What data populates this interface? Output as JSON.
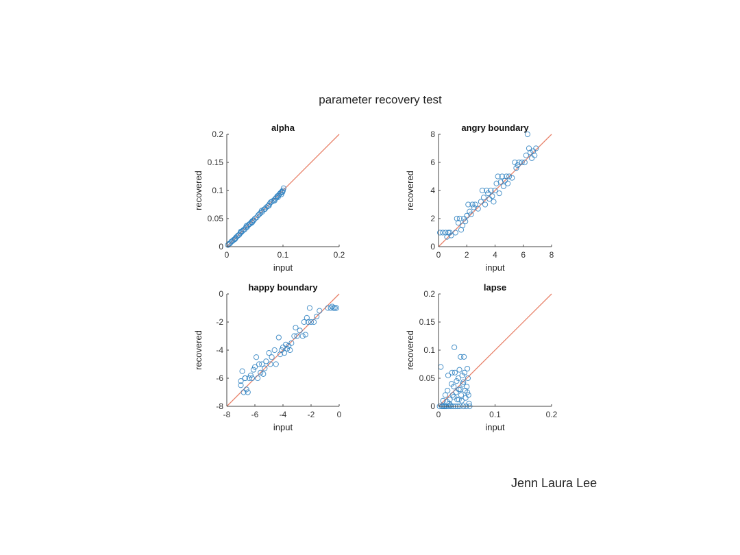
{
  "slide": {
    "title": "parameter recovery test",
    "author": "Jenn Laura Lee"
  },
  "style": {
    "marker_color": "#2a7fbf",
    "identity_line_color": "#e8826a",
    "axis_color": "#444444"
  },
  "chart_data": [
    {
      "type": "scatter",
      "title": "alpha",
      "xlabel": "input",
      "ylabel": "recovered",
      "xlim": [
        0,
        0.2
      ],
      "ylim": [
        0,
        0.2
      ],
      "xticks": [
        0,
        0.1,
        0.2
      ],
      "xtick_labels": [
        "0",
        "0.1",
        "0.2"
      ],
      "yticks": [
        0,
        0.05,
        0.1,
        0.15,
        0.2
      ],
      "ytick_labels": [
        "0",
        "0.05",
        "0.1",
        "0.15",
        "0.2"
      ],
      "identity_line": true,
      "points": [
        [
          0.002,
          0.003
        ],
        [
          0.004,
          0.005
        ],
        [
          0.006,
          0.006
        ],
        [
          0.008,
          0.009
        ],
        [
          0.01,
          0.01
        ],
        [
          0.012,
          0.012
        ],
        [
          0.014,
          0.013
        ],
        [
          0.016,
          0.016
        ],
        [
          0.018,
          0.018
        ],
        [
          0.02,
          0.02
        ],
        [
          0.022,
          0.021
        ],
        [
          0.024,
          0.024
        ],
        [
          0.026,
          0.026
        ],
        [
          0.028,
          0.028
        ],
        [
          0.03,
          0.03
        ],
        [
          0.032,
          0.031
        ],
        [
          0.034,
          0.034
        ],
        [
          0.036,
          0.035
        ],
        [
          0.038,
          0.038
        ],
        [
          0.04,
          0.04
        ],
        [
          0.042,
          0.041
        ],
        [
          0.044,
          0.044
        ],
        [
          0.046,
          0.046
        ],
        [
          0.048,
          0.047
        ],
        [
          0.05,
          0.05
        ],
        [
          0.053,
          0.052
        ],
        [
          0.056,
          0.056
        ],
        [
          0.058,
          0.058
        ],
        [
          0.06,
          0.06
        ],
        [
          0.063,
          0.062
        ],
        [
          0.066,
          0.066
        ],
        [
          0.068,
          0.067
        ],
        [
          0.07,
          0.07
        ],
        [
          0.073,
          0.072
        ],
        [
          0.076,
          0.076
        ],
        [
          0.078,
          0.079
        ],
        [
          0.08,
          0.08
        ],
        [
          0.083,
          0.082
        ],
        [
          0.086,
          0.085
        ],
        [
          0.088,
          0.087
        ],
        [
          0.09,
          0.09
        ],
        [
          0.092,
          0.091
        ],
        [
          0.094,
          0.094
        ],
        [
          0.096,
          0.096
        ],
        [
          0.098,
          0.098
        ],
        [
          0.1,
          0.1
        ],
        [
          0.101,
          0.104
        ],
        [
          0.097,
          0.093
        ],
        [
          0.085,
          0.082
        ],
        [
          0.062,
          0.064
        ],
        [
          0.045,
          0.043
        ],
        [
          0.025,
          0.027
        ],
        [
          0.015,
          0.014
        ],
        [
          0.035,
          0.037
        ],
        [
          0.075,
          0.073
        ],
        [
          0.091,
          0.088
        ],
        [
          0.099,
          0.097
        ]
      ]
    },
    {
      "type": "scatter",
      "title": "angry boundary",
      "xlabel": "input",
      "ylabel": "recovered",
      "xlim": [
        0,
        8
      ],
      "ylim": [
        0,
        8
      ],
      "xticks": [
        0,
        2,
        4,
        6,
        8
      ],
      "xtick_labels": [
        "0",
        "2",
        "4",
        "6",
        "8"
      ],
      "yticks": [
        0,
        2,
        4,
        6,
        8
      ],
      "ytick_labels": [
        "0",
        "2",
        "4",
        "6",
        "8"
      ],
      "identity_line": true,
      "points": [
        [
          0.1,
          1
        ],
        [
          0.3,
          1
        ],
        [
          0.5,
          1
        ],
        [
          0.6,
          0.7
        ],
        [
          0.7,
          1
        ],
        [
          0.8,
          1
        ],
        [
          0.9,
          0.8
        ],
        [
          1.2,
          1
        ],
        [
          1.3,
          2
        ],
        [
          1.4,
          1.7
        ],
        [
          1.5,
          2
        ],
        [
          1.6,
          1.2
        ],
        [
          1.7,
          1.5
        ],
        [
          1.8,
          2
        ],
        [
          1.9,
          1.8
        ],
        [
          2.0,
          2.2
        ],
        [
          2.1,
          3
        ],
        [
          2.2,
          2.5
        ],
        [
          2.3,
          2.3
        ],
        [
          2.4,
          3
        ],
        [
          2.5,
          2.8
        ],
        [
          2.6,
          3
        ],
        [
          2.8,
          2.7
        ],
        [
          3.0,
          3.2
        ],
        [
          3.1,
          4
        ],
        [
          3.2,
          3.5
        ],
        [
          3.3,
          3
        ],
        [
          3.4,
          4
        ],
        [
          3.5,
          3.8
        ],
        [
          3.6,
          3.4
        ],
        [
          3.7,
          4
        ],
        [
          3.8,
          3.6
        ],
        [
          3.9,
          3.2
        ],
        [
          4.0,
          4
        ],
        [
          4.1,
          4.5
        ],
        [
          4.2,
          5
        ],
        [
          4.3,
          3.8
        ],
        [
          4.4,
          4.6
        ],
        [
          4.5,
          5
        ],
        [
          4.6,
          4.3
        ],
        [
          4.7,
          4.7
        ],
        [
          4.8,
          5
        ],
        [
          4.9,
          4.5
        ],
        [
          5.0,
          5
        ],
        [
          5.2,
          4.9
        ],
        [
          5.4,
          6
        ],
        [
          5.5,
          5.6
        ],
        [
          5.6,
          5.8
        ],
        [
          5.7,
          6
        ],
        [
          5.9,
          6
        ],
        [
          6.1,
          6
        ],
        [
          6.2,
          6.5
        ],
        [
          6.3,
          8
        ],
        [
          6.4,
          7
        ],
        [
          6.5,
          6.7
        ],
        [
          6.6,
          6.3
        ],
        [
          6.7,
          6.8
        ],
        [
          6.8,
          6.5
        ],
        [
          6.9,
          7
        ]
      ]
    },
    {
      "type": "scatter",
      "title": "happy boundary",
      "xlabel": "input",
      "ylabel": "recovered",
      "xlim": [
        -8,
        0
      ],
      "ylim": [
        -8,
        0
      ],
      "xticks": [
        -8,
        -6,
        -4,
        -2,
        0
      ],
      "xtick_labels": [
        "-8",
        "-6",
        "-4",
        "-2",
        "0"
      ],
      "yticks": [
        -8,
        -6,
        -4,
        -2,
        0
      ],
      "ytick_labels": [
        "-8",
        "-6",
        "-4",
        "-2",
        "0"
      ],
      "identity_line": true,
      "points": [
        [
          -7.0,
          -6.2
        ],
        [
          -7.0,
          -6.5
        ],
        [
          -6.9,
          -5.5
        ],
        [
          -6.8,
          -7
        ],
        [
          -6.7,
          -6
        ],
        [
          -6.6,
          -6.8
        ],
        [
          -6.5,
          -7
        ],
        [
          -6.4,
          -6
        ],
        [
          -6.3,
          -5.8
        ],
        [
          -6.2,
          -6
        ],
        [
          -6.1,
          -5.4
        ],
        [
          -6.0,
          -5.2
        ],
        [
          -5.9,
          -4.5
        ],
        [
          -5.8,
          -6
        ],
        [
          -5.7,
          -5
        ],
        [
          -5.6,
          -5.6
        ],
        [
          -5.5,
          -5
        ],
        [
          -5.3,
          -5.3
        ],
        [
          -5.2,
          -4.8
        ],
        [
          -5.0,
          -4.2
        ],
        [
          -4.9,
          -5
        ],
        [
          -4.8,
          -4.5
        ],
        [
          -4.6,
          -4
        ],
        [
          -4.5,
          -5
        ],
        [
          -4.3,
          -3.1
        ],
        [
          -4.2,
          -4.3
        ],
        [
          -4.1,
          -4
        ],
        [
          -4.0,
          -3.8
        ],
        [
          -3.9,
          -4.2
        ],
        [
          -3.8,
          -3.6
        ],
        [
          -3.7,
          -3.9
        ],
        [
          -3.6,
          -3.7
        ],
        [
          -3.5,
          -4
        ],
        [
          -3.4,
          -3.5
        ],
        [
          -3.2,
          -3
        ],
        [
          -3.1,
          -2.4
        ],
        [
          -3.0,
          -3
        ],
        [
          -2.8,
          -2.6
        ],
        [
          -2.6,
          -3
        ],
        [
          -2.5,
          -2
        ],
        [
          -2.4,
          -2.9
        ],
        [
          -2.3,
          -1.7
        ],
        [
          -2.2,
          -2
        ],
        [
          -2.1,
          -1
        ],
        [
          -2.0,
          -2
        ],
        [
          -1.8,
          -2
        ],
        [
          -1.6,
          -1.6
        ],
        [
          -1.4,
          -1.2
        ],
        [
          -0.8,
          -1
        ],
        [
          -0.6,
          -1
        ],
        [
          -0.5,
          -0.9
        ],
        [
          -0.4,
          -1
        ],
        [
          -0.3,
          -1
        ],
        [
          -0.2,
          -1
        ],
        [
          -6.7,
          -6
        ],
        [
          -5.4,
          -5.7
        ]
      ]
    },
    {
      "type": "scatter",
      "title": "lapse",
      "xlabel": "input",
      "ylabel": "recovered",
      "xlim": [
        0,
        0.2
      ],
      "ylim": [
        0,
        0.2
      ],
      "xticks": [
        0,
        0.1,
        0.2
      ],
      "xtick_labels": [
        "0",
        "0.1",
        "0.2"
      ],
      "yticks": [
        0,
        0.05,
        0.1,
        0.15,
        0.2
      ],
      "ytick_labels": [
        "0",
        "0.05",
        "0.1",
        "0.15",
        "0.2"
      ],
      "identity_line": true,
      "points": [
        [
          0.002,
          0
        ],
        [
          0.004,
          0.07
        ],
        [
          0.006,
          0
        ],
        [
          0.008,
          0.01
        ],
        [
          0.01,
          0
        ],
        [
          0.012,
          0.02
        ],
        [
          0.014,
          0
        ],
        [
          0.016,
          0.028
        ],
        [
          0.017,
          0.055
        ],
        [
          0.018,
          0
        ],
        [
          0.02,
          0.012
        ],
        [
          0.022,
          0
        ],
        [
          0.023,
          0.04
        ],
        [
          0.024,
          0.06
        ],
        [
          0.025,
          0.02
        ],
        [
          0.026,
          0
        ],
        [
          0.027,
          0.035
        ],
        [
          0.028,
          0.105
        ],
        [
          0.029,
          0.06
        ],
        [
          0.03,
          0
        ],
        [
          0.031,
          0.025
        ],
        [
          0.032,
          0.045
        ],
        [
          0.033,
          0.012
        ],
        [
          0.034,
          0
        ],
        [
          0.035,
          0.05
        ],
        [
          0.036,
          0.03
        ],
        [
          0.037,
          0.065
        ],
        [
          0.038,
          0
        ],
        [
          0.039,
          0.088
        ],
        [
          0.04,
          0.02
        ],
        [
          0.041,
          0.01
        ],
        [
          0.042,
          0.055
        ],
        [
          0.043,
          0.04
        ],
        [
          0.044,
          0
        ],
        [
          0.045,
          0.088
        ],
        [
          0.046,
          0.06
        ],
        [
          0.047,
          0.028
        ],
        [
          0.048,
          0.015
        ],
        [
          0.049,
          0
        ],
        [
          0.05,
          0.035
        ],
        [
          0.051,
          0.067
        ],
        [
          0.052,
          0.05
        ],
        [
          0.053,
          0.02
        ],
        [
          0.054,
          0.005
        ],
        [
          0.055,
          0
        ],
        [
          0.019,
          0.005
        ],
        [
          0.021,
          0.002
        ],
        [
          0.015,
          0.008
        ],
        [
          0.027,
          0.017
        ],
        [
          0.039,
          0.03
        ],
        [
          0.044,
          0.043
        ],
        [
          0.051,
          0.025
        ],
        [
          0.012,
          0
        ],
        [
          0.008,
          0
        ],
        [
          0.036,
          0.012
        ]
      ]
    }
  ]
}
